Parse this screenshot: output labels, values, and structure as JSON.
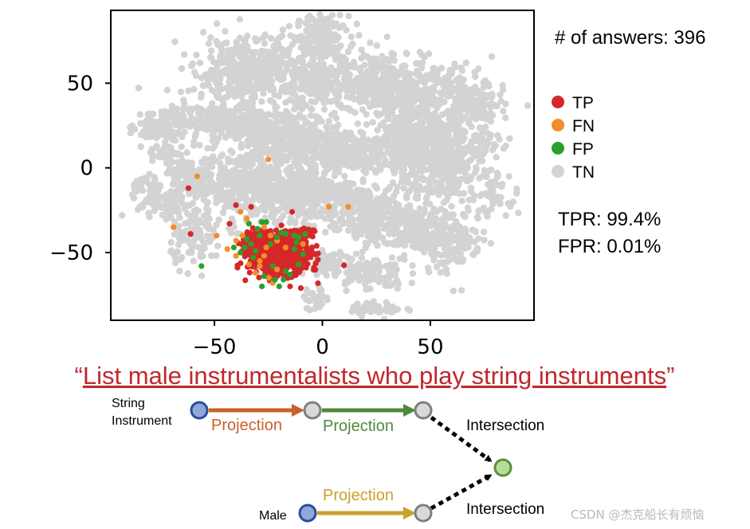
{
  "chart_data": {
    "type": "scatter",
    "title": "",
    "xlabel": "",
    "ylabel": "",
    "xlim": [
      -98,
      98
    ],
    "ylim": [
      -90,
      93
    ],
    "xticks": [
      -50,
      0,
      50
    ],
    "yticks": [
      50,
      0,
      -50
    ],
    "xtick_labels": [
      "−50",
      "0",
      "50"
    ],
    "ytick_labels": [
      "50",
      "0",
      "−50"
    ],
    "grid": false,
    "series": [
      {
        "name": "TN",
        "color": "#d3d3d3",
        "clusters": [
          {
            "x": 0,
            "y": 78,
            "sx": 6,
            "sy": 6,
            "n": 140
          },
          {
            "x": -33,
            "y": 58,
            "sx": 13,
            "sy": 10,
            "n": 420
          },
          {
            "x": -2,
            "y": 50,
            "sx": 8,
            "sy": 8,
            "n": 230
          },
          {
            "x": 27,
            "y": 50,
            "sx": 9,
            "sy": 10,
            "n": 260
          },
          {
            "x": 48,
            "y": 43,
            "sx": 10,
            "sy": 9,
            "n": 250
          },
          {
            "x": 70,
            "y": 36,
            "sx": 7,
            "sy": 9,
            "n": 160
          },
          {
            "x": 58,
            "y": 15,
            "sx": 12,
            "sy": 6,
            "n": 200
          },
          {
            "x": 52,
            "y": -3,
            "sx": 14,
            "sy": 8,
            "n": 280
          },
          {
            "x": -45,
            "y": 28,
            "sx": 17,
            "sy": 6,
            "n": 320
          },
          {
            "x": -77,
            "y": 23,
            "sx": 5,
            "sy": 5,
            "n": 70
          },
          {
            "x": -72,
            "y": 10,
            "sx": 4,
            "sy": 7,
            "n": 45
          },
          {
            "x": -85,
            "y": -11,
            "sx": 2,
            "sy": 3,
            "n": 20
          },
          {
            "x": -20,
            "y": 18,
            "sx": 11,
            "sy": 5,
            "n": 220
          },
          {
            "x": 0,
            "y": 13,
            "sx": 8,
            "sy": 6,
            "n": 160
          },
          {
            "x": 20,
            "y": 8,
            "sx": 11,
            "sy": 5,
            "n": 200
          },
          {
            "x": -33,
            "y": -10,
            "sx": 18,
            "sy": 12,
            "n": 520
          },
          {
            "x": -5,
            "y": -15,
            "sx": 10,
            "sy": 8,
            "n": 220
          },
          {
            "x": 18,
            "y": -27,
            "sx": 12,
            "sy": 8,
            "n": 240
          },
          {
            "x": 42,
            "y": -38,
            "sx": 12,
            "sy": 7,
            "n": 200
          },
          {
            "x": 60,
            "y": -42,
            "sx": 7,
            "sy": 10,
            "n": 130
          },
          {
            "x": 22,
            "y": -62,
            "sx": 8,
            "sy": 5,
            "n": 90
          },
          {
            "x": 25,
            "y": -83,
            "sx": 6,
            "sy": 2,
            "n": 45
          },
          {
            "x": -3,
            "y": -78,
            "sx": 3,
            "sy": 3,
            "n": 30
          },
          {
            "x": 5,
            "y": -58,
            "sx": 5,
            "sy": 5,
            "n": 60
          },
          {
            "x": -58,
            "y": -42,
            "sx": 6,
            "sy": 8,
            "n": 90
          },
          {
            "x": -75,
            "y": -22,
            "sx": 7,
            "sy": 5,
            "n": 60
          },
          {
            "x": -60,
            "y": -5,
            "sx": 7,
            "sy": 6,
            "n": 90
          },
          {
            "x": 78,
            "y": -18,
            "sx": 4,
            "sy": 5,
            "n": 40
          },
          {
            "x": 40,
            "y": 22,
            "sx": 8,
            "sy": 5,
            "n": 120
          }
        ]
      },
      {
        "name": "TP",
        "color": "#d62728",
        "clusters": [
          {
            "x": -20,
            "y": -53,
            "sx": 7,
            "sy": 5,
            "n": 600
          },
          {
            "x": -28,
            "y": -45,
            "sx": 5,
            "sy": 4,
            "n": 160
          },
          {
            "x": -14,
            "y": -40,
            "sx": 4,
            "sy": 2,
            "n": 90
          },
          {
            "x": -8,
            "y": -38,
            "sx": 2,
            "sy": 1.5,
            "n": 20
          }
        ],
        "points": [
          [
            -62,
            -12
          ],
          [
            -61,
            -39
          ],
          [
            -43,
            -33
          ],
          [
            -40,
            -22
          ],
          [
            -33,
            -23
          ],
          [
            -14,
            -26
          ],
          [
            -10,
            -71
          ],
          [
            -15,
            -70
          ],
          [
            -22,
            -62
          ],
          [
            -25,
            -60
          ],
          [
            -18,
            -57
          ]
        ]
      },
      {
        "name": "FN",
        "color": "#f28e2b",
        "points": [
          [
            -58,
            -5
          ],
          [
            -69,
            -35
          ],
          [
            -49,
            -40
          ],
          [
            -38,
            -26
          ],
          [
            -35,
            -30
          ],
          [
            -27,
            -35
          ],
          [
            -40,
            -43
          ],
          [
            -23,
            -68
          ],
          [
            -25,
            -65
          ],
          [
            -29,
            -55
          ],
          [
            -21,
            -60
          ],
          [
            -29,
            -58
          ],
          [
            -31,
            -62
          ],
          [
            -44,
            -48
          ],
          [
            -37,
            -40
          ],
          [
            -24,
            -40
          ],
          [
            -13,
            -40
          ],
          [
            -9,
            -45
          ],
          [
            -34,
            -57
          ],
          [
            -17,
            -47
          ],
          [
            -21,
            -43
          ],
          [
            -27,
            -52
          ],
          [
            -40,
            -52
          ],
          [
            -26,
            -47
          ],
          [
            3,
            -23
          ],
          [
            12,
            -23
          ],
          [
            -25,
            5
          ]
        ]
      },
      {
        "name": "FP",
        "color": "#2ca02c",
        "points": [
          [
            -56,
            -58
          ],
          [
            -34,
            -33
          ],
          [
            -30,
            -36
          ],
          [
            -28,
            -32
          ],
          [
            -26,
            -32
          ],
          [
            -21,
            -41
          ],
          [
            -19,
            -38
          ],
          [
            -17,
            -39
          ],
          [
            -13,
            -40
          ],
          [
            -11,
            -41
          ],
          [
            -8,
            -39
          ],
          [
            -27,
            -64
          ],
          [
            -20,
            -70
          ],
          [
            -28,
            -70
          ],
          [
            -22,
            -66
          ],
          [
            -32,
            -53
          ],
          [
            -36,
            -47
          ],
          [
            -33,
            -45
          ],
          [
            -38,
            -50
          ],
          [
            -29,
            -40
          ],
          [
            -23,
            -58
          ],
          [
            -15,
            -63
          ],
          [
            -11,
            -57
          ],
          [
            -9,
            -51
          ],
          [
            -31,
            -49
          ],
          [
            -24,
            -45
          ],
          [
            -35,
            -42
          ],
          [
            -18,
            -66
          ],
          [
            -13,
            -48
          ],
          [
            -41,
            -47
          ],
          [
            -12,
            -44
          ],
          [
            -17,
            -61
          ]
        ]
      }
    ],
    "legend": {
      "placement": "right",
      "entries": [
        {
          "label": "TP",
          "color": "#d62728"
        },
        {
          "label": "FN",
          "color": "#f28e2b"
        },
        {
          "label": "FP",
          "color": "#2ca02c"
        },
        {
          "label": "TN",
          "color": "#d3d3d3"
        }
      ]
    },
    "annotations": {
      "answers": "# of answers: 396",
      "tpr": "TPR: 99.4%",
      "fpr": "FPR: 0.01%"
    }
  },
  "query": {
    "open_quote": "“",
    "text": "List male instrumentalists who play string instruments",
    "close_quote": "”"
  },
  "query_graph": {
    "anchor_top_line1": "String",
    "anchor_top_line2": "Instrument",
    "anchor_bottom": "Male",
    "edge_top_1": "Projection",
    "edge_top_2": "Projection",
    "edge_bottom": "Projection",
    "intersection_top": "Intersection",
    "intersection_bottom": "Intersection",
    "colors": {
      "edge_top_1": "#c9602b",
      "edge_top_2": "#4e8a3c",
      "edge_bottom": "#c9a22a",
      "anchor_fill": "#8fa8dc",
      "anchor_stroke": "#2b4c9a",
      "var_fill": "#d9d9d9",
      "var_stroke": "#7f7f7f",
      "target_fill": "#b6dc9c",
      "target_stroke": "#5e8e3a"
    }
  },
  "watermark": "CSDN @杰克船长有烦恼"
}
